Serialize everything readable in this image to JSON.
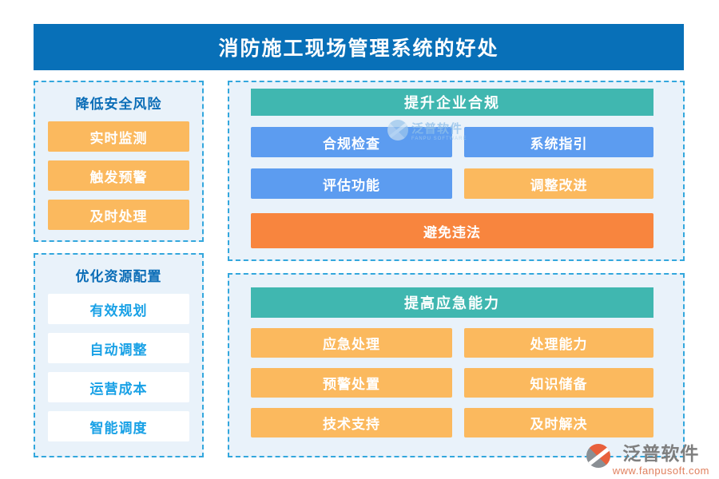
{
  "title": "消防施工现场管理系统的好处",
  "panels": {
    "risk": {
      "header": "降低安全风险",
      "items": [
        "实时监测",
        "触发预警",
        "及时处理"
      ]
    },
    "resource": {
      "header": "优化资源配置",
      "items": [
        "有效规划",
        "自动调整",
        "运营成本",
        "智能调度"
      ]
    },
    "compliance": {
      "header": "提升企业合规",
      "rows": [
        [
          "合规检查",
          "系统指引"
        ],
        [
          "评估功能",
          "调整改进"
        ]
      ],
      "footer_item": "避免违法"
    },
    "emergency": {
      "header": "提高应急能力",
      "rows": [
        [
          "应急处理",
          "处理能力"
        ],
        [
          "预警处置",
          "知识储备"
        ],
        [
          "技术支持",
          "及时解决"
        ]
      ]
    }
  },
  "watermark": {
    "brand": "泛普软件",
    "sub": "FANPU SOFTWARE"
  },
  "footer": {
    "brand": "泛普软件",
    "url": "www.fanpusoft.com"
  },
  "colors": {
    "titlebar_blue": "#0870B8",
    "panel_background": "#E9F2FA",
    "dashed_border_blue": "#33A7DD",
    "teal_header": "#40B7B0",
    "blue_button": "#5C9CF0",
    "orange_button": "#FBB95E",
    "deep_orange_button": "#F8853E",
    "cyan_text": "#19A1E6",
    "panel_header_text": "#0B6DB7"
  }
}
